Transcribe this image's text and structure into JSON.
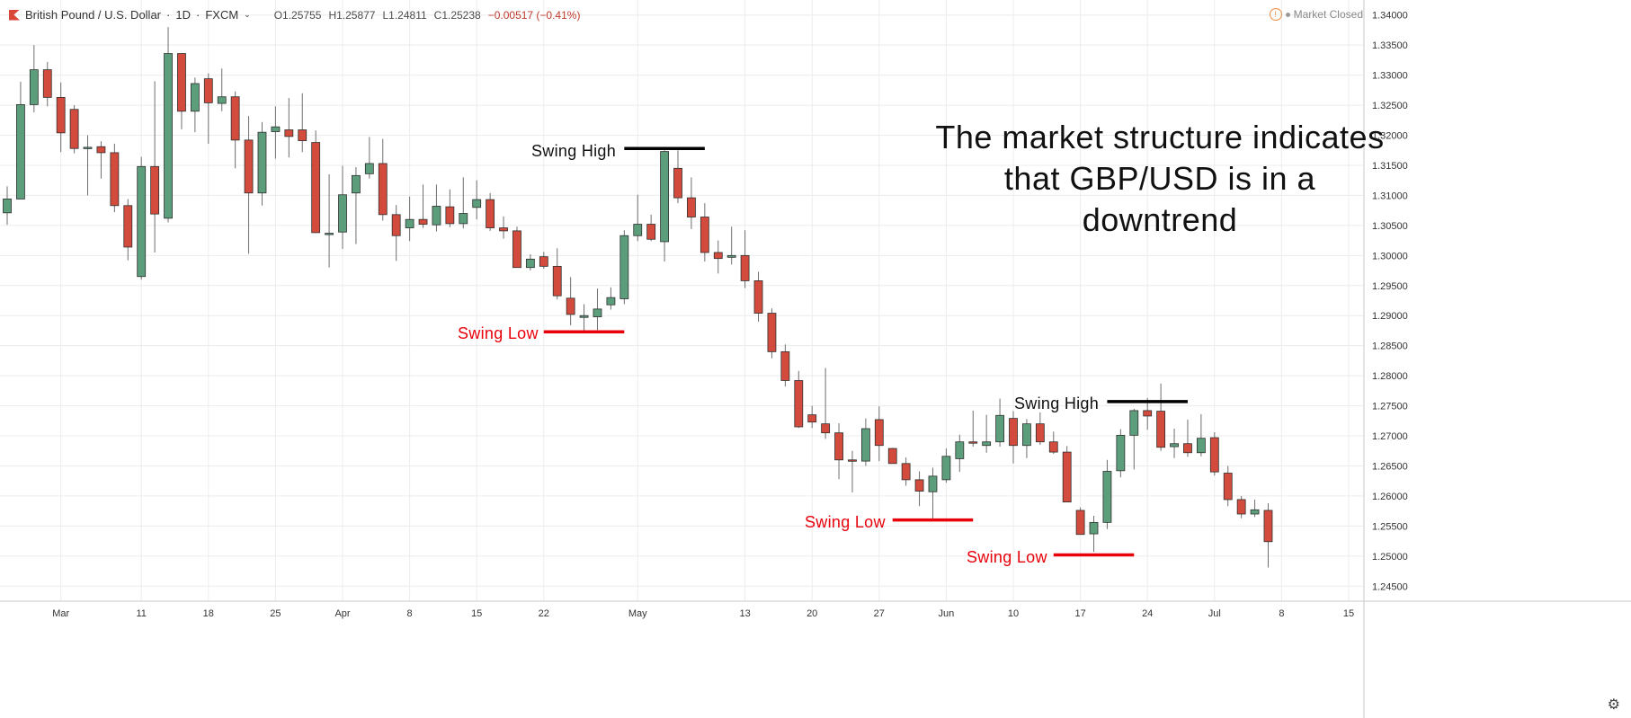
{
  "header": {
    "symbol": "British Pound / U.S. Dollar",
    "interval": "1D",
    "source": "FXCM",
    "open": "O1.25755",
    "high": "H1.25877",
    "low": "L1.24811",
    "close": "C1.25238",
    "change": "−0.00517 (−0.41%)"
  },
  "status": {
    "market": "Market Closed"
  },
  "headline": {
    "line1": "The market structure indicates",
    "line2": "that GBP/USD is in a downtrend"
  },
  "annotations": {
    "swing_high_1": "Swing High",
    "swing_low_1": "Swing Low",
    "swing_high_2": "Swing High",
    "swing_low_2": "Swing Low",
    "swing_low_3": "Swing Low"
  },
  "colors": {
    "up": "#5c9e7b",
    "down": "#d24b3d",
    "wick": "#6e6e6e",
    "grid": "#ececec",
    "swing_high_line": "#000000",
    "swing_low_line": "#e8000b"
  },
  "chart_data": {
    "type": "candlestick",
    "title": "British Pound / U.S. Dollar · 1D · FXCM",
    "ylim": [
      1.2425,
      1.3425
    ],
    "y_ticks": [
      "1.24500",
      "1.25000",
      "1.25500",
      "1.26000",
      "1.26500",
      "1.27000",
      "1.27500",
      "1.28000",
      "1.28500",
      "1.29000",
      "1.29500",
      "1.30000",
      "1.30500",
      "1.31000",
      "1.31500",
      "1.32000",
      "1.32500",
      "1.33000",
      "1.33500",
      "1.34000"
    ],
    "x_ticks": [
      {
        "label": "Mar",
        "index": 4
      },
      {
        "label": "11",
        "index": 10
      },
      {
        "label": "18",
        "index": 15
      },
      {
        "label": "25",
        "index": 20
      },
      {
        "label": "Apr",
        "index": 25
      },
      {
        "label": "8",
        "index": 30
      },
      {
        "label": "15",
        "index": 35
      },
      {
        "label": "22",
        "index": 40
      },
      {
        "label": "May",
        "index": 47
      },
      {
        "label": "13",
        "index": 55
      },
      {
        "label": "20",
        "index": 60
      },
      {
        "label": "27",
        "index": 65
      },
      {
        "label": "Jun",
        "index": 70
      },
      {
        "label": "10",
        "index": 75
      },
      {
        "label": "17",
        "index": 80
      },
      {
        "label": "24",
        "index": 85
      },
      {
        "label": "Jul",
        "index": 90
      },
      {
        "label": "8",
        "index": 95
      },
      {
        "label": "15",
        "index": 100
      }
    ],
    "grid": true,
    "candles": [
      {
        "o": 1.3071,
        "h": 1.3115,
        "l": 1.3051,
        "c": 1.3094
      },
      {
        "o": 1.3094,
        "h": 1.3289,
        "l": 1.3094,
        "c": 1.3251
      },
      {
        "o": 1.3251,
        "h": 1.335,
        "l": 1.3238,
        "c": 1.3309
      },
      {
        "o": 1.3309,
        "h": 1.3322,
        "l": 1.3248,
        "c": 1.3263
      },
      {
        "o": 1.3263,
        "h": 1.3288,
        "l": 1.3172,
        "c": 1.3204
      },
      {
        "o": 1.3243,
        "h": 1.325,
        "l": 1.317,
        "c": 1.3178
      },
      {
        "o": 1.3178,
        "h": 1.32,
        "l": 1.31,
        "c": 1.318
      },
      {
        "o": 1.3181,
        "h": 1.319,
        "l": 1.3128,
        "c": 1.3171
      },
      {
        "o": 1.3171,
        "h": 1.3186,
        "l": 1.3072,
        "c": 1.3083
      },
      {
        "o": 1.3083,
        "h": 1.3094,
        "l": 1.2992,
        "c": 1.3014
      },
      {
        "o": 1.2965,
        "h": 1.3164,
        "l": 1.296,
        "c": 1.3148
      },
      {
        "o": 1.3148,
        "h": 1.329,
        "l": 1.3005,
        "c": 1.3069
      },
      {
        "o": 1.3062,
        "h": 1.338,
        "l": 1.3055,
        "c": 1.3336
      },
      {
        "o": 1.3336,
        "h": 1.3336,
        "l": 1.321,
        "c": 1.324
      },
      {
        "o": 1.324,
        "h": 1.3296,
        "l": 1.3205,
        "c": 1.3286
      },
      {
        "o": 1.3294,
        "h": 1.3303,
        "l": 1.3186,
        "c": 1.3254
      },
      {
        "o": 1.3253,
        "h": 1.3311,
        "l": 1.324,
        "c": 1.3264
      },
      {
        "o": 1.3264,
        "h": 1.3273,
        "l": 1.3145,
        "c": 1.3192
      },
      {
        "o": 1.3192,
        "h": 1.3232,
        "l": 1.3003,
        "c": 1.3104
      },
      {
        "o": 1.3104,
        "h": 1.3222,
        "l": 1.3083,
        "c": 1.3205
      },
      {
        "o": 1.3206,
        "h": 1.3248,
        "l": 1.3161,
        "c": 1.3214
      },
      {
        "o": 1.3209,
        "h": 1.3262,
        "l": 1.3163,
        "c": 1.3198
      },
      {
        "o": 1.3209,
        "h": 1.327,
        "l": 1.3172,
        "c": 1.3191
      },
      {
        "o": 1.3188,
        "h": 1.3208,
        "l": 1.3038,
        "c": 1.3038
      },
      {
        "o": 1.3035,
        "h": 1.3135,
        "l": 1.298,
        "c": 1.3037
      },
      {
        "o": 1.3039,
        "h": 1.3149,
        "l": 1.3011,
        "c": 1.3101
      },
      {
        "o": 1.3104,
        "h": 1.3147,
        "l": 1.3019,
        "c": 1.3133
      },
      {
        "o": 1.3136,
        "h": 1.3197,
        "l": 1.3128,
        "c": 1.3153
      },
      {
        "o": 1.3153,
        "h": 1.3194,
        "l": 1.3058,
        "c": 1.3068
      },
      {
        "o": 1.3068,
        "h": 1.3084,
        "l": 1.2991,
        "c": 1.3033
      },
      {
        "o": 1.3046,
        "h": 1.3098,
        "l": 1.3024,
        "c": 1.306
      },
      {
        "o": 1.306,
        "h": 1.3118,
        "l": 1.3046,
        "c": 1.3052
      },
      {
        "o": 1.3051,
        "h": 1.3118,
        "l": 1.304,
        "c": 1.3082
      },
      {
        "o": 1.3081,
        "h": 1.311,
        "l": 1.3047,
        "c": 1.3053
      },
      {
        "o": 1.3053,
        "h": 1.313,
        "l": 1.3045,
        "c": 1.307
      },
      {
        "o": 1.308,
        "h": 1.3125,
        "l": 1.306,
        "c": 1.3093
      },
      {
        "o": 1.3093,
        "h": 1.3104,
        "l": 1.3041,
        "c": 1.3046
      },
      {
        "o": 1.3046,
        "h": 1.3065,
        "l": 1.3028,
        "c": 1.3041
      },
      {
        "o": 1.3041,
        "h": 1.3048,
        "l": 1.298,
        "c": 1.298
      },
      {
        "o": 1.298,
        "h": 1.3002,
        "l": 1.2975,
        "c": 1.2994
      },
      {
        "o": 1.2998,
        "h": 1.3006,
        "l": 1.2978,
        "c": 1.2982
      },
      {
        "o": 1.2982,
        "h": 1.3012,
        "l": 1.2927,
        "c": 1.2933
      },
      {
        "o": 1.2929,
        "h": 1.2964,
        "l": 1.2884,
        "c": 1.2902
      },
      {
        "o": 1.2897,
        "h": 1.2919,
        "l": 1.2873,
        "c": 1.29
      },
      {
        "o": 1.2898,
        "h": 1.2945,
        "l": 1.2876,
        "c": 1.2911
      },
      {
        "o": 1.2918,
        "h": 1.2947,
        "l": 1.291,
        "c": 1.293
      },
      {
        "o": 1.2928,
        "h": 1.3042,
        "l": 1.2919,
        "c": 1.3033
      },
      {
        "o": 1.3033,
        "h": 1.3101,
        "l": 1.3024,
        "c": 1.3052
      },
      {
        "o": 1.3052,
        "h": 1.3068,
        "l": 1.3024,
        "c": 1.3027
      },
      {
        "o": 1.3023,
        "h": 1.3175,
        "l": 1.299,
        "c": 1.3173
      },
      {
        "o": 1.3145,
        "h": 1.3175,
        "l": 1.3087,
        "c": 1.3096
      },
      {
        "o": 1.3096,
        "h": 1.313,
        "l": 1.3044,
        "c": 1.3064
      },
      {
        "o": 1.3064,
        "h": 1.3087,
        "l": 1.299,
        "c": 1.3005
      },
      {
        "o": 1.3005,
        "h": 1.3025,
        "l": 1.297,
        "c": 1.2995
      },
      {
        "o": 1.2997,
        "h": 1.3048,
        "l": 1.2985,
        "c": 1.3
      },
      {
        "o": 1.3,
        "h": 1.3042,
        "l": 1.2946,
        "c": 1.2958
      },
      {
        "o": 1.2958,
        "h": 1.2973,
        "l": 1.289,
        "c": 1.2904
      },
      {
        "o": 1.2904,
        "h": 1.2912,
        "l": 1.2829,
        "c": 1.284
      },
      {
        "o": 1.284,
        "h": 1.2852,
        "l": 1.2782,
        "c": 1.2792
      },
      {
        "o": 1.2792,
        "h": 1.2808,
        "l": 1.2713,
        "c": 1.2715
      },
      {
        "o": 1.2735,
        "h": 1.275,
        "l": 1.2713,
        "c": 1.2723
      },
      {
        "o": 1.272,
        "h": 1.2813,
        "l": 1.2695,
        "c": 1.2705
      },
      {
        "o": 1.2705,
        "h": 1.2721,
        "l": 1.2628,
        "c": 1.266
      },
      {
        "o": 1.266,
        "h": 1.2675,
        "l": 1.2606,
        "c": 1.2658
      },
      {
        "o": 1.2658,
        "h": 1.2729,
        "l": 1.265,
        "c": 1.2712
      },
      {
        "o": 1.2727,
        "h": 1.2749,
        "l": 1.2658,
        "c": 1.2684
      },
      {
        "o": 1.2679,
        "h": 1.268,
        "l": 1.2654,
        "c": 1.2654
      },
      {
        "o": 1.2654,
        "h": 1.2664,
        "l": 1.2617,
        "c": 1.2627
      },
      {
        "o": 1.2627,
        "h": 1.2641,
        "l": 1.2583,
        "c": 1.2608
      },
      {
        "o": 1.2607,
        "h": 1.2647,
        "l": 1.256,
        "c": 1.2633
      },
      {
        "o": 1.2627,
        "h": 1.2679,
        "l": 1.2622,
        "c": 1.2666
      },
      {
        "o": 1.2662,
        "h": 1.2702,
        "l": 1.264,
        "c": 1.269
      },
      {
        "o": 1.269,
        "h": 1.2742,
        "l": 1.2682,
        "c": 1.2688
      },
      {
        "o": 1.2684,
        "h": 1.2735,
        "l": 1.2672,
        "c": 1.269
      },
      {
        "o": 1.269,
        "h": 1.2762,
        "l": 1.2682,
        "c": 1.2734
      },
      {
        "o": 1.2729,
        "h": 1.2741,
        "l": 1.2654,
        "c": 1.2684
      },
      {
        "o": 1.2684,
        "h": 1.2728,
        "l": 1.2663,
        "c": 1.272
      },
      {
        "o": 1.272,
        "h": 1.2739,
        "l": 1.2685,
        "c": 1.269
      },
      {
        "o": 1.269,
        "h": 1.2707,
        "l": 1.267,
        "c": 1.2673
      },
      {
        "o": 1.2673,
        "h": 1.2683,
        "l": 1.259,
        "c": 1.259
      },
      {
        "o": 1.2576,
        "h": 1.2581,
        "l": 1.2536,
        "c": 1.2536
      },
      {
        "o": 1.2537,
        "h": 1.2567,
        "l": 1.2507,
        "c": 1.2556
      },
      {
        "o": 1.2556,
        "h": 1.266,
        "l": 1.2545,
        "c": 1.2641
      },
      {
        "o": 1.2642,
        "h": 1.2711,
        "l": 1.2631,
        "c": 1.2701
      },
      {
        "o": 1.2701,
        "h": 1.2745,
        "l": 1.2644,
        "c": 1.2742
      },
      {
        "o": 1.2742,
        "h": 1.2763,
        "l": 1.271,
        "c": 1.2733
      },
      {
        "o": 1.2741,
        "h": 1.2787,
        "l": 1.2675,
        "c": 1.2681
      },
      {
        "o": 1.2682,
        "h": 1.2712,
        "l": 1.2663,
        "c": 1.2687
      },
      {
        "o": 1.2687,
        "h": 1.2727,
        "l": 1.2665,
        "c": 1.2672
      },
      {
        "o": 1.2672,
        "h": 1.2736,
        "l": 1.2666,
        "c": 1.2696
      },
      {
        "o": 1.2697,
        "h": 1.2706,
        "l": 1.2634,
        "c": 1.264
      },
      {
        "o": 1.2638,
        "h": 1.265,
        "l": 1.2583,
        "c": 1.2594
      },
      {
        "o": 1.2594,
        "h": 1.26,
        "l": 1.2563,
        "c": 1.257
      },
      {
        "o": 1.257,
        "h": 1.2594,
        "l": 1.2565,
        "c": 1.2577
      },
      {
        "o": 1.2576,
        "h": 1.2588,
        "l": 1.2481,
        "c": 1.2524
      }
    ],
    "swing_levels": [
      {
        "label": "Swing High",
        "price": 1.3178,
        "from": 46,
        "to": 52,
        "kind": "high"
      },
      {
        "label": "Swing Low",
        "price": 1.2873,
        "from": 40,
        "to": 46,
        "kind": "low"
      },
      {
        "label": "Swing High",
        "price": 1.2757,
        "from": 82,
        "to": 88,
        "kind": "high"
      },
      {
        "label": "Swing Low",
        "price": 1.256,
        "from": 66,
        "to": 72,
        "kind": "low"
      },
      {
        "label": "Swing Low",
        "price": 1.2502,
        "from": 78,
        "to": 84,
        "kind": "low"
      }
    ]
  }
}
